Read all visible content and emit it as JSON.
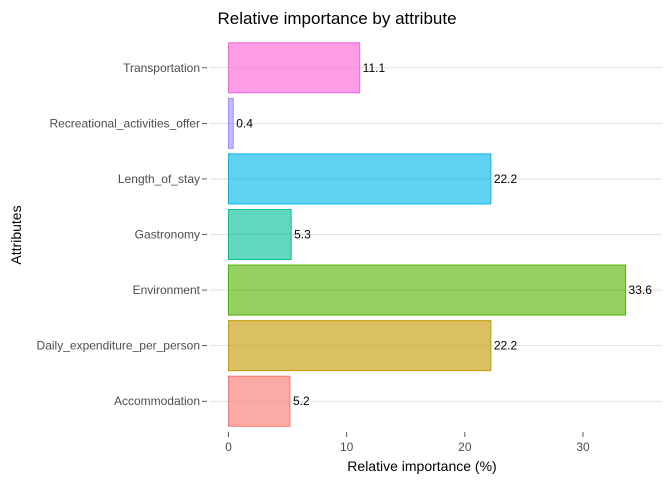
{
  "chart_data": {
    "type": "bar",
    "orientation": "horizontal",
    "title": "Relative importance by attribute",
    "xlabel": "Relative importance (%)",
    "ylabel": "Attributes",
    "xlim": [
      0,
      37
    ],
    "xticks": [
      0,
      10,
      20,
      30
    ],
    "grid": "horizontal major lines only",
    "legend": "none",
    "categories": [
      "Accommodation",
      "Daily_expenditure_per_person",
      "Environment",
      "Gastronomy",
      "Length_of_stay",
      "Recreational_activities_offer",
      "Transportation"
    ],
    "values": [
      5.2,
      22.2,
      33.6,
      5.3,
      22.2,
      0.4,
      11.1
    ],
    "labels": [
      "5.2",
      "22.2",
      "33.6",
      "5.3",
      "22.2",
      "0.4",
      "11.1"
    ],
    "fill_colors": [
      "#F8766D",
      "#C49A00",
      "#53B400",
      "#00C094",
      "#00B6EB",
      "#A58AFF",
      "#FB61D7"
    ]
  }
}
